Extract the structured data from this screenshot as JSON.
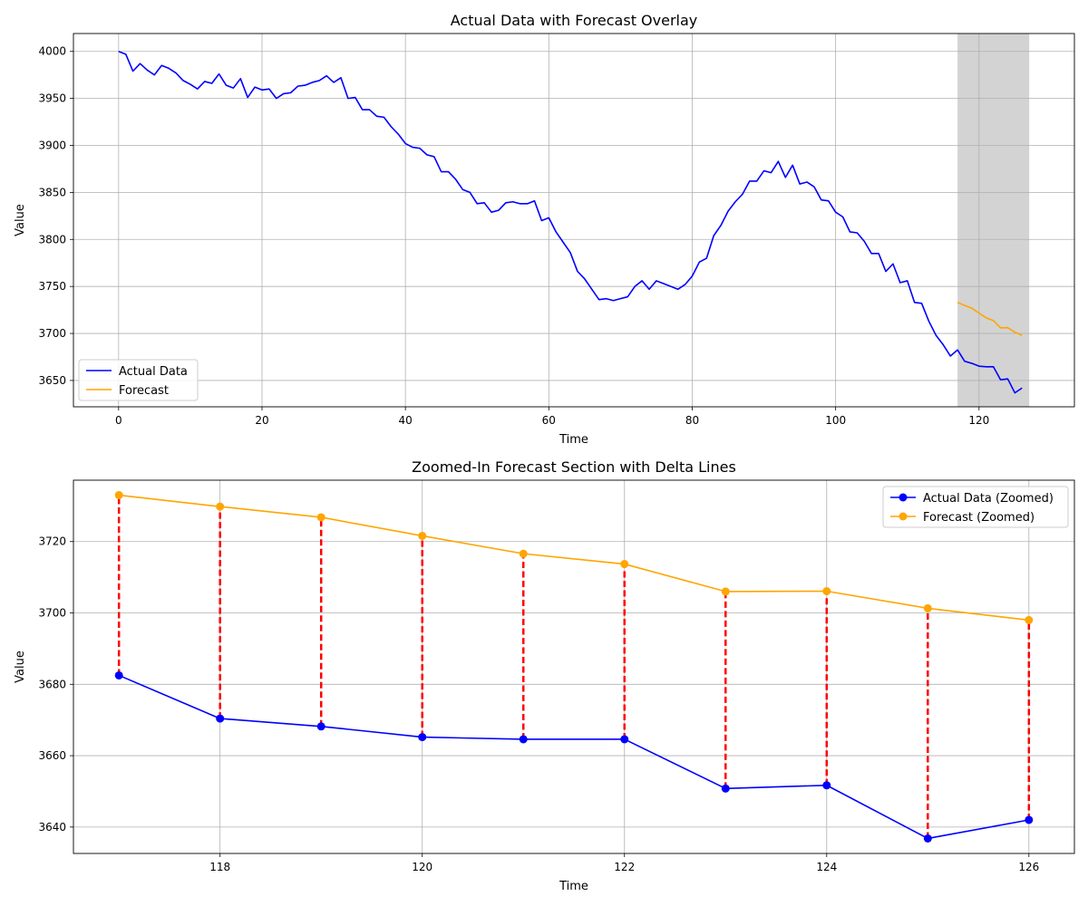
{
  "chart_data": [
    {
      "type": "line",
      "title": "Actual Data with Forecast Overlay",
      "xlabel": "Time",
      "ylabel": "Value",
      "xlim": [
        -6.3,
        133.3
      ],
      "ylim": [
        3622,
        4019
      ],
      "xticks": [
        0,
        20,
        40,
        60,
        80,
        100,
        120
      ],
      "yticks": [
        3650,
        3700,
        3750,
        3800,
        3850,
        3900,
        3950,
        4000
      ],
      "grid": true,
      "legend_position": "lower-left",
      "highlight_span": [
        117,
        127
      ],
      "highlight_color": "#d3d3d3",
      "series": [
        {
          "name": "Actual Data",
          "color": "#0000ff",
          "x_start": 0,
          "values": [
            4000,
            3997,
            3979,
            3987,
            3980,
            3975,
            3985,
            3982,
            3977,
            3969,
            3965,
            3960,
            3968,
            3966,
            3976,
            3964,
            3961,
            3971,
            3951,
            3962,
            3959,
            3960,
            3950,
            3955,
            3956,
            3963,
            3964,
            3967,
            3969,
            3974,
            3967,
            3972,
            3950,
            3951,
            3938,
            3938,
            3931,
            3930,
            3920,
            3912,
            3902,
            3898,
            3897,
            3890,
            3888,
            3872,
            3872,
            3864,
            3853,
            3850,
            3838,
            3839,
            3829,
            3831,
            3839,
            3840,
            3838,
            3838,
            3841,
            3820,
            3823,
            3808,
            3797,
            3786,
            3766,
            3758,
            3747,
            3736,
            3737,
            3735,
            3737,
            3739,
            3750,
            3756,
            3747,
            3756,
            3753,
            3750,
            3747,
            3752,
            3761,
            3776,
            3780,
            3804,
            3815,
            3830,
            3840,
            3848,
            3862,
            3862,
            3873,
            3871,
            3883,
            3866,
            3879,
            3859,
            3861,
            3856,
            3842,
            3841,
            3829,
            3824,
            3808,
            3807,
            3798,
            3785,
            3785,
            3766,
            3774,
            3754,
            3756,
            3733,
            3732,
            3713,
            3698,
            3688,
            3676,
            3682.5,
            3670.4,
            3668.2,
            3665.2,
            3664.6,
            3664.6,
            3650.8,
            3651.7,
            3636.8,
            3642
          ]
        },
        {
          "name": "Forecast",
          "color": "#ffa500",
          "x_start": 117,
          "values": [
            3733,
            3729.8,
            3726.8,
            3721.6,
            3716.6,
            3713.7,
            3706,
            3706.1,
            3701.3,
            3698
          ]
        }
      ]
    },
    {
      "type": "line",
      "title": "Zoomed-In Forecast Section with Delta Lines",
      "xlabel": "Time",
      "ylabel": "Value",
      "xlim": [
        116.55,
        126.45
      ],
      "ylim": [
        3632.6,
        3737.2
      ],
      "xticks": [
        118,
        120,
        122,
        124,
        126
      ],
      "yticks": [
        3640,
        3660,
        3680,
        3700,
        3720
      ],
      "grid": true,
      "legend_position": "top-right",
      "delta_color": "#ff0000",
      "x": [
        117,
        118,
        119,
        120,
        121,
        122,
        123,
        124,
        125,
        126
      ],
      "series": [
        {
          "name": "Actual Data (Zoomed)",
          "color": "#0000ff",
          "values": [
            3682.5,
            3670.4,
            3668.2,
            3665.2,
            3664.6,
            3664.6,
            3650.8,
            3651.7,
            3636.8,
            3642
          ]
        },
        {
          "name": "Forecast (Zoomed)",
          "color": "#ffa500",
          "values": [
            3733,
            3729.8,
            3726.8,
            3721.6,
            3716.6,
            3713.7,
            3706,
            3706.1,
            3701.3,
            3698
          ]
        }
      ]
    }
  ]
}
